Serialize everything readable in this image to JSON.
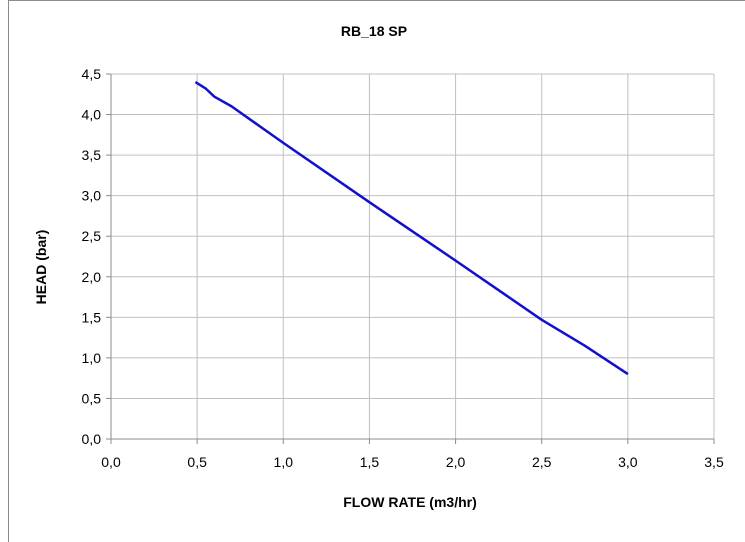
{
  "chart_data": {
    "type": "line",
    "title": "RB_18  SP",
    "xlabel": "FLOW RATE (m3/hr)",
    "ylabel": "HEAD (bar)",
    "xlim": [
      0,
      3.5
    ],
    "ylim": [
      0,
      4.5
    ],
    "x_ticks": [
      "0,0",
      "0,5",
      "1,0",
      "1,5",
      "2,0",
      "2,5",
      "3,0",
      "3,5"
    ],
    "y_ticks": [
      "0,0",
      "0,5",
      "1,0",
      "1,5",
      "2,0",
      "2,5",
      "3,0",
      "3,5",
      "4,0",
      "4,5"
    ],
    "x_tick_values": [
      0,
      0.5,
      1.0,
      1.5,
      2.0,
      2.5,
      3.0,
      3.5
    ],
    "y_tick_values": [
      0,
      0.5,
      1.0,
      1.5,
      2.0,
      2.5,
      3.0,
      3.5,
      4.0,
      4.5
    ],
    "grid": {
      "vertical": true,
      "horizontal": true
    },
    "legend": "none",
    "series": [
      {
        "color": "#1010d0",
        "x": [
          0.49,
          0.55,
          0.6,
          0.7,
          1.0,
          1.5,
          2.0,
          2.5,
          2.75,
          3.0
        ],
        "y": [
          4.4,
          4.32,
          4.22,
          4.1,
          3.65,
          2.92,
          2.2,
          1.47,
          1.15,
          0.8
        ]
      }
    ]
  }
}
